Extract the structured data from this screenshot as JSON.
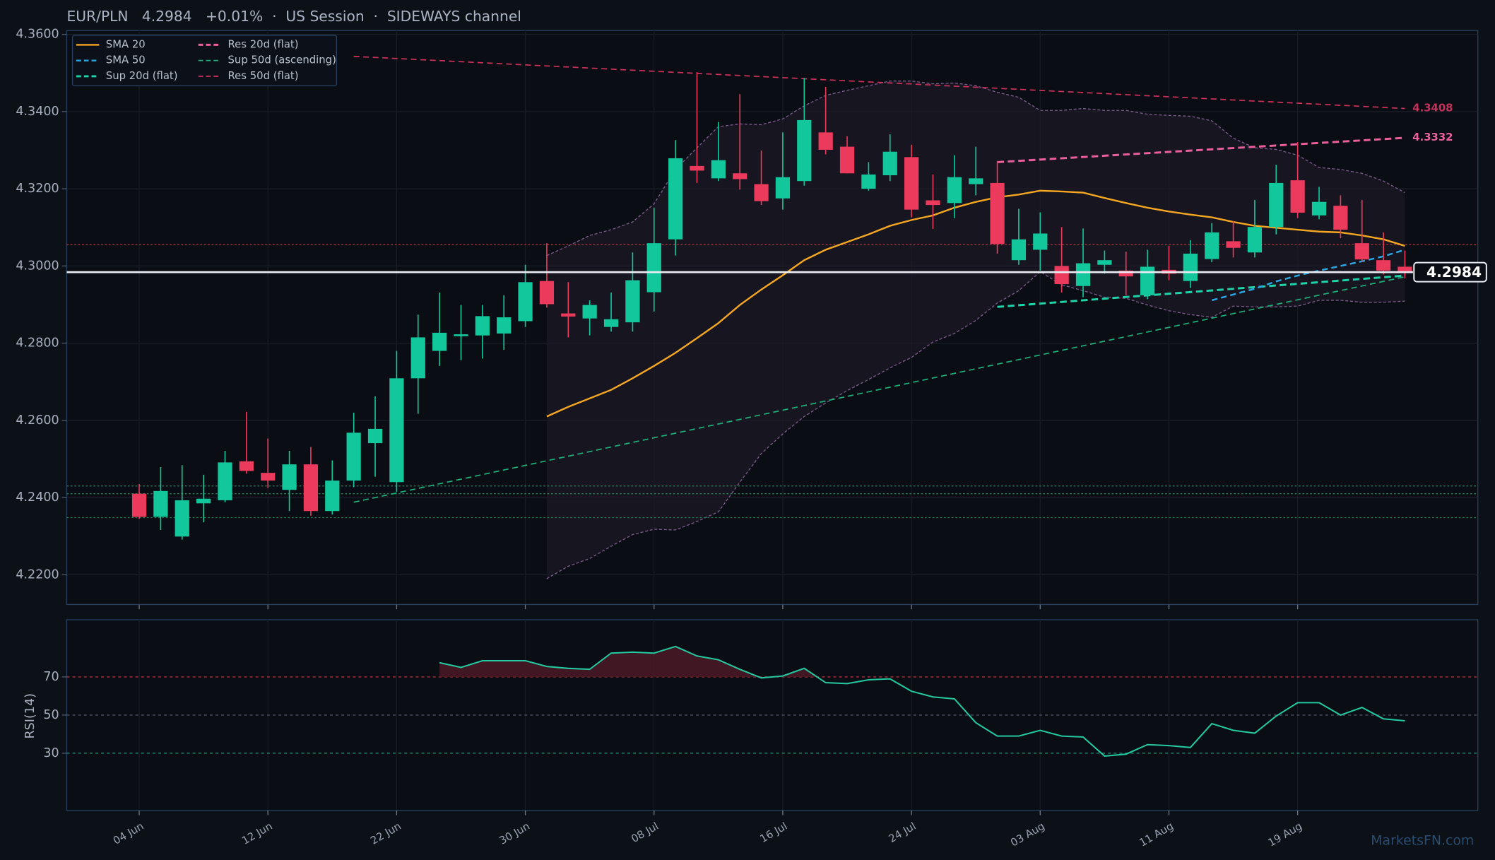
{
  "chart_data": [
    {
      "type": "candlestick",
      "title": "EUR/PLN   4.2984   +0.01%  ·  US Session  ·  SIDEWAYS channel",
      "categories": [
        "04 Jun",
        null,
        null,
        null,
        null,
        null,
        "12 Jun",
        null,
        null,
        null,
        null,
        null,
        "22 Jun",
        null,
        null,
        null,
        null,
        null,
        "30 Jun",
        null,
        null,
        null,
        null,
        null,
        "08 Jul",
        null,
        null,
        null,
        null,
        null,
        "16 Jul",
        null,
        null,
        null,
        null,
        null,
        "24 Jul",
        null,
        null,
        null,
        null,
        null,
        "03 Aug",
        null,
        null,
        null,
        null,
        null,
        "11 Aug",
        null,
        null,
        null,
        null,
        null,
        "19 Aug",
        null,
        null,
        null,
        null,
        null
      ],
      "open": [
        4.241,
        4.235,
        4.2299,
        4.2385,
        4.2393,
        4.2494,
        4.2464,
        4.242,
        4.2486,
        4.2365,
        4.2444,
        4.2541,
        4.244,
        4.2709,
        4.278,
        4.2818,
        4.282,
        4.2825,
        4.2857,
        4.2961,
        4.2877,
        4.2864,
        4.2842,
        4.2854,
        4.2932,
        4.3069,
        4.3259,
        4.3227,
        4.324,
        4.3212,
        4.3175,
        4.322,
        4.3346,
        4.3309,
        4.32,
        4.3235,
        4.3282,
        4.317,
        4.3163,
        4.3212,
        4.3215,
        4.3015,
        4.3042,
        4.3,
        4.2948,
        4.3003,
        4.2988,
        4.2924,
        4.299,
        4.2961,
        4.3018,
        4.3064,
        4.3035,
        4.3101,
        4.3222,
        4.3131,
        4.3156,
        4.3059,
        4.3015,
        4.2998
      ],
      "high": [
        4.2435,
        4.2479,
        4.2484,
        4.2459,
        4.2521,
        4.2622,
        4.2553,
        4.2521,
        4.2531,
        4.2496,
        4.262,
        4.2662,
        4.278,
        4.2874,
        4.2931,
        4.2899,
        4.2899,
        4.2924,
        4.3003,
        4.3059,
        4.2958,
        4.2911,
        4.2931,
        4.3035,
        4.3151,
        4.3326,
        4.3502,
        4.3373,
        4.3445,
        4.3299,
        4.3346,
        4.3487,
        4.3464,
        4.3336,
        4.3269,
        4.3341,
        4.3314,
        4.3237,
        4.3287,
        4.3309,
        4.3272,
        4.3148,
        4.3139,
        4.3101,
        4.3097,
        4.304,
        4.3037,
        4.3042,
        4.3052,
        4.3067,
        4.3111,
        4.3116,
        4.3171,
        4.3262,
        4.3321,
        4.3205,
        4.3183,
        4.3171,
        4.3087,
        4.304
      ],
      "low": [
        4.2345,
        4.2316,
        4.2291,
        4.2336,
        4.2388,
        4.2462,
        4.2425,
        4.2365,
        4.2353,
        4.2356,
        4.2427,
        4.2454,
        4.2415,
        4.2617,
        4.2741,
        4.2756,
        4.276,
        4.2783,
        4.2842,
        4.2892,
        4.2815,
        4.282,
        4.283,
        4.283,
        4.2882,
        4.3027,
        4.3215,
        4.322,
        4.3198,
        4.3158,
        4.3146,
        4.3208,
        4.3289,
        4.324,
        4.3195,
        4.322,
        4.3126,
        4.3096,
        4.3124,
        4.3183,
        4.3032,
        4.3003,
        4.2988,
        4.2931,
        4.2919,
        4.298,
        4.2924,
        4.2914,
        4.2963,
        4.2943,
        4.301,
        4.3022,
        4.3022,
        4.3082,
        4.3124,
        4.3121,
        4.3072,
        4.301,
        4.2978,
        4.2968
      ],
      "close": [
        4.235,
        4.2417,
        4.2393,
        4.2397,
        4.2491,
        4.2469,
        4.2444,
        4.2486,
        4.2365,
        4.2444,
        4.2568,
        4.2578,
        4.2709,
        4.2815,
        4.2827,
        4.2823,
        4.287,
        4.2867,
        4.2958,
        4.2901,
        4.2869,
        4.2899,
        4.2862,
        4.2963,
        4.3059,
        4.3279,
        4.3247,
        4.3274,
        4.3225,
        4.3168,
        4.323,
        4.3378,
        4.3301,
        4.324,
        4.3237,
        4.3296,
        4.3146,
        4.3158,
        4.323,
        4.3227,
        4.3057,
        4.3069,
        4.3084,
        4.2953,
        4.3007,
        4.3015,
        4.2973,
        4.2998,
        4.298,
        4.3032,
        4.3087,
        4.3047,
        4.3101,
        4.3215,
        4.3138,
        4.3166,
        4.3094,
        4.3017,
        4.2988,
        4.2984
      ],
      "up_color": "#12c79c",
      "down_color": "#ec3a5c",
      "ylim": [
        4.2123,
        4.361
      ],
      "yticks": [
        {
          "value": 4.22,
          "label": "4.2200"
        },
        {
          "value": 4.24,
          "label": "4.2400"
        },
        {
          "value": 4.26,
          "label": "4.2600"
        },
        {
          "value": 4.28,
          "label": "4.2800"
        },
        {
          "value": 4.3,
          "label": "4.3000"
        },
        {
          "value": 4.32,
          "label": "4.3200"
        },
        {
          "value": 4.34,
          "label": "4.3400"
        },
        {
          "value": 4.36,
          "label": "4.3600"
        }
      ],
      "grid": true,
      "legend": "upper left",
      "series": [
        {
          "name": "SMA 20",
          "color": "#f5a623",
          "linestyle": "solid",
          "values": [
            null,
            null,
            null,
            null,
            null,
            null,
            null,
            null,
            null,
            null,
            null,
            null,
            null,
            null,
            null,
            null,
            null,
            null,
            null,
            4.261,
            4.2635,
            4.2657,
            4.2679,
            4.2709,
            4.2741,
            4.2775,
            4.2813,
            4.2852,
            4.2899,
            4.2939,
            4.2976,
            4.3015,
            4.3042,
            4.3062,
            4.3082,
            4.3104,
            4.3119,
            4.3131,
            4.3151,
            4.3166,
            4.3178,
            4.3185,
            4.3195,
            4.3193,
            4.319,
            4.3176,
            4.3163,
            4.3151,
            4.3141,
            4.3133,
            4.3126,
            4.3114,
            4.3104,
            4.3099,
            4.3094,
            4.3089,
            4.3087,
            4.3079,
            4.3069,
            4.3052
          ]
        },
        {
          "name": "SMA 50",
          "color": "#2aa8e6",
          "linestyle": "dashed",
          "values": [
            null,
            null,
            null,
            null,
            null,
            null,
            null,
            null,
            null,
            null,
            null,
            null,
            null,
            null,
            null,
            null,
            null,
            null,
            null,
            null,
            null,
            null,
            null,
            null,
            null,
            null,
            null,
            null,
            null,
            null,
            null,
            null,
            null,
            null,
            null,
            null,
            null,
            null,
            null,
            null,
            null,
            null,
            null,
            null,
            null,
            null,
            null,
            null,
            null,
            null,
            4.2911,
            4.2926,
            4.2941,
            4.296,
            4.2975,
            4.2988,
            4.3,
            4.3012,
            4.3025,
            4.3042
          ]
        }
      ],
      "bands": {
        "color": "#7a5a8a",
        "upper": [
          null,
          null,
          null,
          null,
          null,
          null,
          null,
          null,
          null,
          null,
          null,
          null,
          null,
          null,
          null,
          null,
          null,
          null,
          null,
          4.3027,
          4.3052,
          4.3079,
          4.3094,
          4.3114,
          4.3161,
          4.325,
          4.3306,
          4.3361,
          4.3368,
          4.3366,
          4.3381,
          4.3415,
          4.3442,
          4.3455,
          4.3467,
          4.3479,
          4.3479,
          4.3472,
          4.3474,
          4.3467,
          4.345,
          4.3437,
          4.3403,
          4.3403,
          4.3408,
          4.3403,
          4.3403,
          4.3393,
          4.339,
          4.3388,
          4.3376,
          4.3331,
          4.3306,
          4.3302,
          4.3287,
          4.3255,
          4.325,
          4.324,
          4.322,
          4.319
        ],
        "lower": [
          null,
          null,
          null,
          null,
          null,
          null,
          null,
          null,
          null,
          null,
          null,
          null,
          null,
          null,
          null,
          null,
          null,
          null,
          null,
          4.219,
          4.2222,
          4.2242,
          4.2274,
          4.2304,
          4.2318,
          4.2316,
          4.2338,
          4.2363,
          4.244,
          4.2514,
          4.2565,
          4.261,
          4.2645,
          4.2677,
          4.2706,
          4.2736,
          4.2763,
          4.2803,
          4.2825,
          4.2859,
          4.2904,
          4.2936,
          4.2985,
          4.2951,
          4.2936,
          4.2919,
          4.2916,
          4.2899,
          4.2884,
          4.2874,
          4.2867,
          4.2896,
          4.2894,
          4.2894,
          4.2896,
          4.2911,
          4.2911,
          4.2906,
          4.2906,
          4.2909
        ]
      },
      "trendlines": [
        {
          "name": "Sup 20d (flat)",
          "color": "#1fd3a8",
          "linestyle": "dashed",
          "linewidth": 2.2,
          "x": [
            40,
            59
          ],
          "values": [
            4.2894,
            4.2975
          ]
        },
        {
          "name": "Res 20d (flat)",
          "color": "#ea5f9c",
          "linestyle": "dashed",
          "linewidth": 2.2,
          "x": [
            40,
            59
          ],
          "values": [
            4.3269,
            4.3332
          ],
          "end_label": true
        },
        {
          "name": "Sup 50d (ascending)",
          "color": "#1fae7a",
          "linestyle": "dashed",
          "linewidth": 1.3,
          "x": [
            10,
            59
          ],
          "values": [
            4.2388,
            4.2972
          ]
        },
        {
          "name": "Res 50d (flat)",
          "color": "#c8305c",
          "linestyle": "dashed",
          "linewidth": 1.3,
          "x": [
            10,
            59
          ],
          "values": [
            4.3543,
            4.3408
          ],
          "end_label": true
        }
      ],
      "reference_lines": [
        {
          "value": 4.3055,
          "color": "#b03040"
        },
        {
          "value": 4.243,
          "color": "#2a7a5a"
        },
        {
          "value": 4.241,
          "color": "#2a7a5a"
        },
        {
          "value": 4.2348,
          "color": "#2a7a5a"
        }
      ],
      "last_price": 4.2984,
      "watermark": "MarketsFN.com"
    },
    {
      "type": "line",
      "ylabel": "RSI(14)",
      "color": "#23c9a0",
      "overbought_fill": "#4a1a26",
      "ylim": [
        0,
        100
      ],
      "yticks": [
        30,
        50,
        70
      ],
      "reference_lines": [
        {
          "value": 70,
          "color": "#b0303c"
        },
        {
          "value": 50,
          "color": "#4a5060"
        },
        {
          "value": 30,
          "color": "#1f9a80"
        }
      ],
      "values": [
        null,
        null,
        null,
        null,
        null,
        null,
        null,
        null,
        null,
        null,
        null,
        null,
        null,
        null,
        77.5,
        75,
        78.5,
        78.5,
        78.5,
        75.5,
        74.5,
        74,
        82.5,
        83,
        82.5,
        86,
        81,
        79,
        74,
        69.5,
        70.5,
        74.5,
        67,
        66.5,
        68.5,
        69,
        62.5,
        59.5,
        58.5,
        46,
        39,
        39,
        42,
        39,
        38.5,
        28.5,
        29.5,
        34.5,
        34,
        33,
        45.5,
        42,
        40.5,
        49.5,
        56.5,
        56.5,
        50,
        54,
        48,
        47
      ]
    }
  ]
}
